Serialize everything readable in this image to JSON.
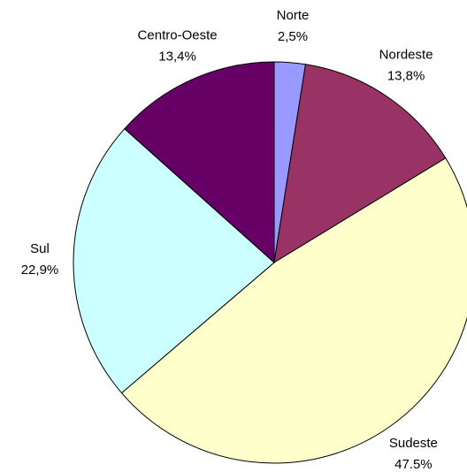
{
  "chart_data": {
    "type": "pie",
    "categories": [
      "Norte",
      "Nordeste",
      "Sudeste",
      "Sul",
      "Centro-Oeste"
    ],
    "values": [
      2.5,
      13.8,
      47.5,
      22.9,
      13.4
    ],
    "value_labels": [
      "2,5%",
      "13,8%",
      "47.5%",
      "22,9%",
      "13,4%"
    ],
    "colors": [
      "#9999ff",
      "#993366",
      "#ffffcc",
      "#ccffff",
      "#660066"
    ]
  }
}
